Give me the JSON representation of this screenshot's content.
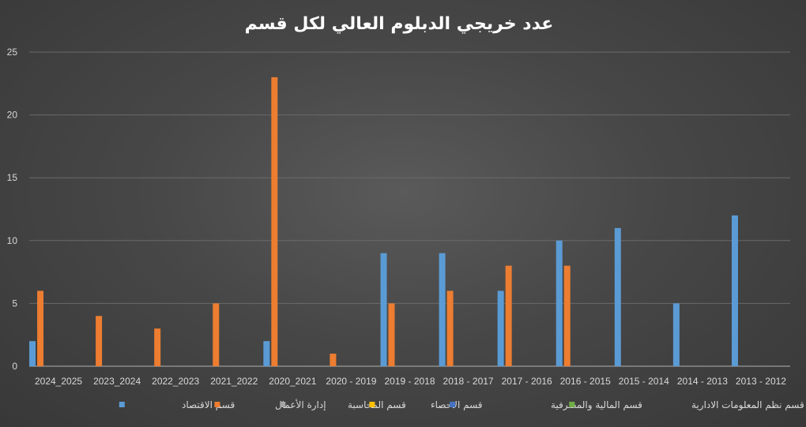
{
  "chart_data": {
    "type": "bar",
    "title": "عدد خريجي الدبلوم العالي لكل قسم",
    "categories": [
      "2024_2025",
      "2023_2024",
      "2022_2023",
      "2021_2022",
      "2020_2021",
      "2020 - 2019",
      "2019 - 2018",
      "2018 - 2017",
      "2017 - 2016",
      "2016 - 2015",
      "2015 - 2014",
      "2014 - 2013",
      "2013 - 2012"
    ],
    "ylim": [
      0,
      25
    ],
    "yticks": [
      0,
      5,
      10,
      15,
      20,
      25
    ],
    "grid": true,
    "legend_position": "bottom",
    "series": [
      {
        "name": "قسم الاقتصاد",
        "color": "#5b9bd5",
        "values": [
          2,
          0,
          0,
          0,
          2,
          0,
          9,
          9,
          6,
          10,
          11,
          5,
          12
        ]
      },
      {
        "name": "إدارة الأعمال",
        "color": "#ed7d31",
        "values": [
          6,
          4,
          3,
          5,
          23,
          1,
          5,
          6,
          8,
          8,
          0,
          0,
          0
        ]
      },
      {
        "name": "قسم المحاسبة",
        "color": "#a5a5a5",
        "values": [
          0,
          0,
          0,
          0,
          0,
          0,
          0,
          0,
          0,
          0,
          0,
          0,
          0
        ]
      },
      {
        "name": "قسم الاحصاء",
        "color": "#ffc000",
        "values": [
          0,
          0,
          0,
          0,
          0,
          0,
          0,
          0,
          0,
          0,
          0,
          0,
          0
        ]
      },
      {
        "name": "قسم المالية والمصرفية",
        "color": "#4472c4",
        "values": [
          0,
          0,
          0,
          0,
          0,
          0,
          0,
          0,
          0,
          0,
          0,
          0,
          0
        ]
      },
      {
        "name": "قسم نظم المعلومات الادارية",
        "color": "#70ad47",
        "values": [
          0,
          0,
          0,
          0,
          0,
          0,
          0,
          0,
          0,
          0,
          0,
          0,
          0
        ]
      }
    ]
  }
}
